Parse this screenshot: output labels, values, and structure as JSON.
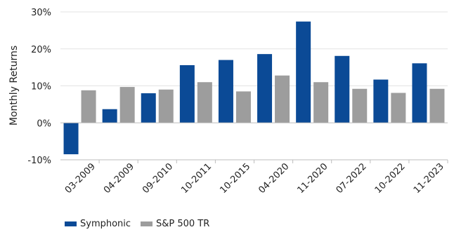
{
  "chart_data": {
    "type": "bar",
    "ylabel": "Monthly Returns",
    "ylim": [
      -10,
      30
    ],
    "yticks": [
      -10,
      0,
      10,
      20,
      30
    ],
    "y_unit_suffix": "%",
    "grid": "horizontal",
    "legend_position": "bottom-left",
    "categories": [
      "03-2009",
      "04-2009",
      "09-2010",
      "10-2011",
      "10-2015",
      "04-2020",
      "11-2020",
      "07-2022",
      "10-2022",
      "11-2023"
    ],
    "series": [
      {
        "name": "Symphonic",
        "color": "#0b4a96",
        "values": [
          -8.5,
          3.7,
          8.0,
          15.6,
          17.0,
          18.6,
          27.4,
          18.1,
          11.7,
          16.1
        ]
      },
      {
        "name": "S&P 500 TR",
        "color": "#9d9d9d",
        "values": [
          8.8,
          9.7,
          9.0,
          11.0,
          8.5,
          12.8,
          11.0,
          9.2,
          8.1,
          9.2
        ]
      }
    ]
  }
}
